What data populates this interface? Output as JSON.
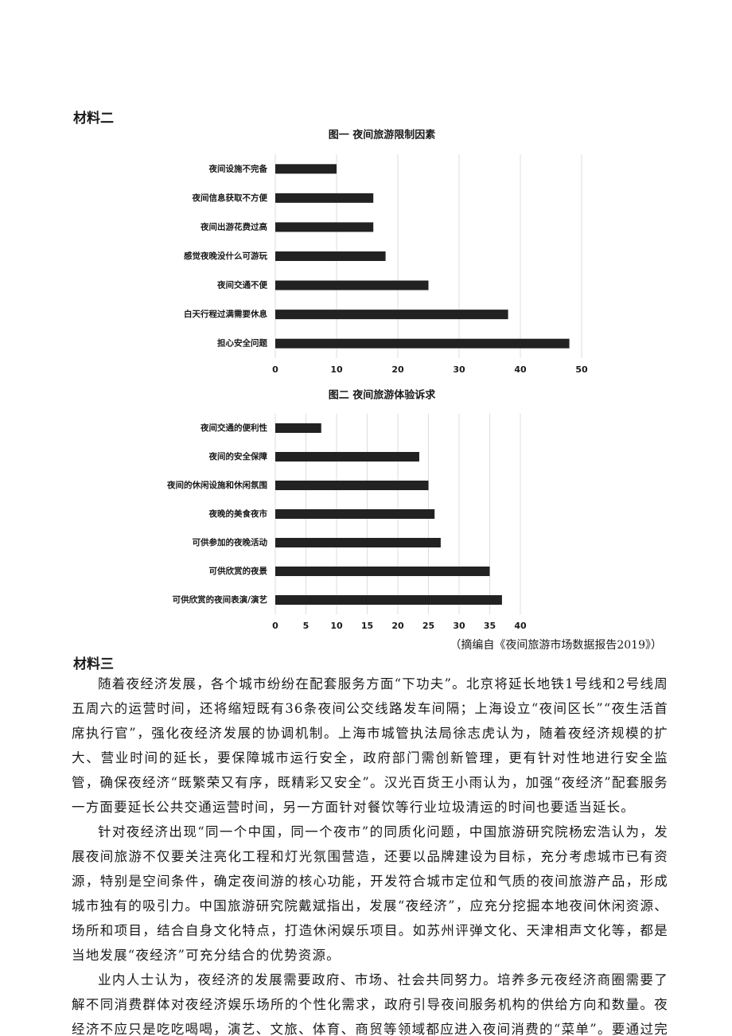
{
  "heading_2": "材料二",
  "chart_data": [
    {
      "type": "hbar",
      "title": "图一 夜间旅游限制因素",
      "categories": [
        "夜间设施不完备",
        "夜间信息获取不方便",
        "夜间出游花费过高",
        "感觉夜晚没什么可游玩",
        "夜间交通不便",
        "白天行程过满需要休息",
        "担心安全问题"
      ],
      "values": [
        10,
        16,
        16,
        18,
        25,
        38,
        48
      ],
      "color": "#222222",
      "xlim": [
        0,
        50
      ],
      "xticks": [
        0,
        10,
        20,
        30,
        40,
        50
      ],
      "grid": true
    },
    {
      "type": "hbar",
      "title": "图二 夜间旅游体验诉求",
      "categories": [
        "夜间交通的便利性",
        "夜间的安全保障",
        "夜间的休闲设施和休闲氛围",
        "夜晚的美食夜市",
        "可供参加的夜晚活动",
        "可供欣赏的夜景",
        "可供欣赏的夜间表演/演艺"
      ],
      "values": [
        7.5,
        23.5,
        25,
        26,
        27,
        35,
        37
      ],
      "color": "#222222",
      "xlim": [
        0,
        40
      ],
      "xticks": [
        0,
        5,
        10,
        15,
        20,
        25,
        30,
        35,
        40
      ],
      "grid": true
    }
  ],
  "source": "（摘编自《夜间旅游市场数据报告2019》）",
  "heading_3": "材料三",
  "paragraphs": [
    "随着夜经济发展，各个城市纷纷在配套服务方面“下功夫”。北京将延长地铁1号线和2号线周五周六的运营时间，还将缩短既有36条夜间公交线路发车间隔；上海设立“夜间区长”“夜生活首席执行官”，强化夜经济发展的协调机制。上海市城管执法局徐志虎认为，随着夜经济规模的扩大、营业时间的延长，要保障城市运行安全，政府部门需创新管理，更有针对性地进行安全监管，确保夜经济“既繁荣又有序，既精彩又安全”。汉光百货王小雨认为，加强“夜经济”配套服务一方面要延长公共交通运营时间，另一方面针对餐饮等行业垃圾清运的时间也要适当延长。",
    "针对夜经济出现“同一个中国，同一个夜市”的同质化问题，中国旅游研究院杨宏浩认为，发展夜间旅游不仅要关注亮化工程和灯光氛围营造，还要以品牌建设为目标，充分考虑城市已有资源，特别是空间条件，确定夜间游的核心功能，开发符合城市定位和气质的夜间旅游产品，形成城市独有的吸引力。中国旅游研究院戴斌指出，发展“夜经济”，应充分挖掘本地夜间休闲资源、场所和项目，结合自身文化特点，打造休闲娱乐项目。如苏州评弹文化、天津相声文化等，都是当地发展“夜经济”可充分结合的优势资源。",
    "业内人士认为，夜经济的发展需要政府、市场、社会共同努力。培养多元夜经济商圈需要了解不同消费群体对夜经济娱乐场所的个性化需求，政府引导夜间服务机构的供给方向和数量。夜经济不应只是吃吃喝喝，演艺、文旅、体育、商贸等领域都应进入夜间消费的“菜单”。要通过完善规划，使夜经济形"
  ]
}
